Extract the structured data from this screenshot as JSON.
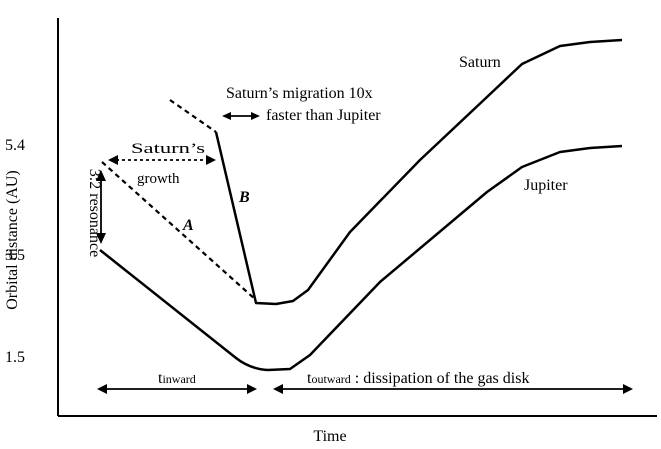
{
  "chart_data": {
    "type": "line",
    "xlabel": "Time",
    "ylabel": "Orbital distance (AU)",
    "y_ticks": [
      "5.4",
      "3.5",
      "1.5"
    ],
    "series": [
      {
        "name": "Saturn"
      },
      {
        "name": "Jupiter"
      }
    ],
    "annotations": {
      "resonance": "3:2 resonance",
      "saturn_growth": "Saturn’s growth",
      "migration_line1": "Saturn’s migration 10x",
      "migration_line2": "faster than Jupiter",
      "path_a": "A",
      "path_b": "B",
      "t_inward_base": "t",
      "t_inward_sub": "inward",
      "t_outward_base": "t",
      "t_outward_sub": "outward",
      "t_outward_rest": " :  dissipation of the gas disk"
    }
  },
  "colors": {
    "ink": "#000000",
    "background": "#ffffff"
  }
}
